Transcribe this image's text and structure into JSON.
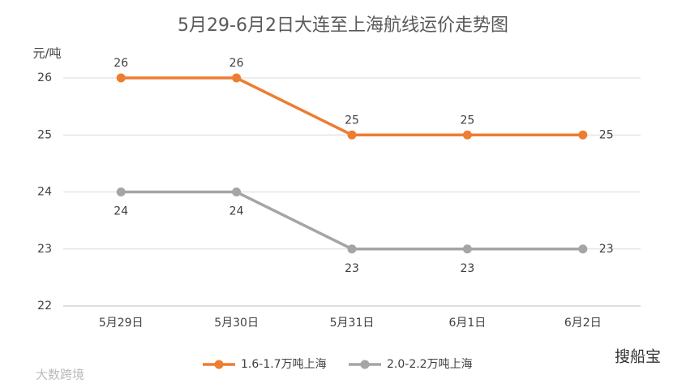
{
  "chart_data": {
    "type": "line",
    "title": "5月29-6月2日大连至上海航线运价走势图",
    "y_label": "元/吨",
    "categories": [
      "5月29日",
      "5月30日",
      "5月31日",
      "6月1日",
      "6月2日"
    ],
    "series": [
      {
        "name": "1.6-1.7万吨上海",
        "color": "#ed7d31",
        "values": [
          26,
          26,
          25,
          25,
          25
        ]
      },
      {
        "name": "2.0-2.2万吨上海",
        "color": "#a5a5a5",
        "values": [
          24,
          24,
          23,
          23,
          23
        ]
      }
    ],
    "ylim": [
      22,
      26
    ],
    "yticks": [
      22,
      23,
      24,
      25,
      26
    ],
    "grid": true,
    "legend": "bottom"
  },
  "watermarks": [
    "大数跨境",
    "搜船宝"
  ]
}
